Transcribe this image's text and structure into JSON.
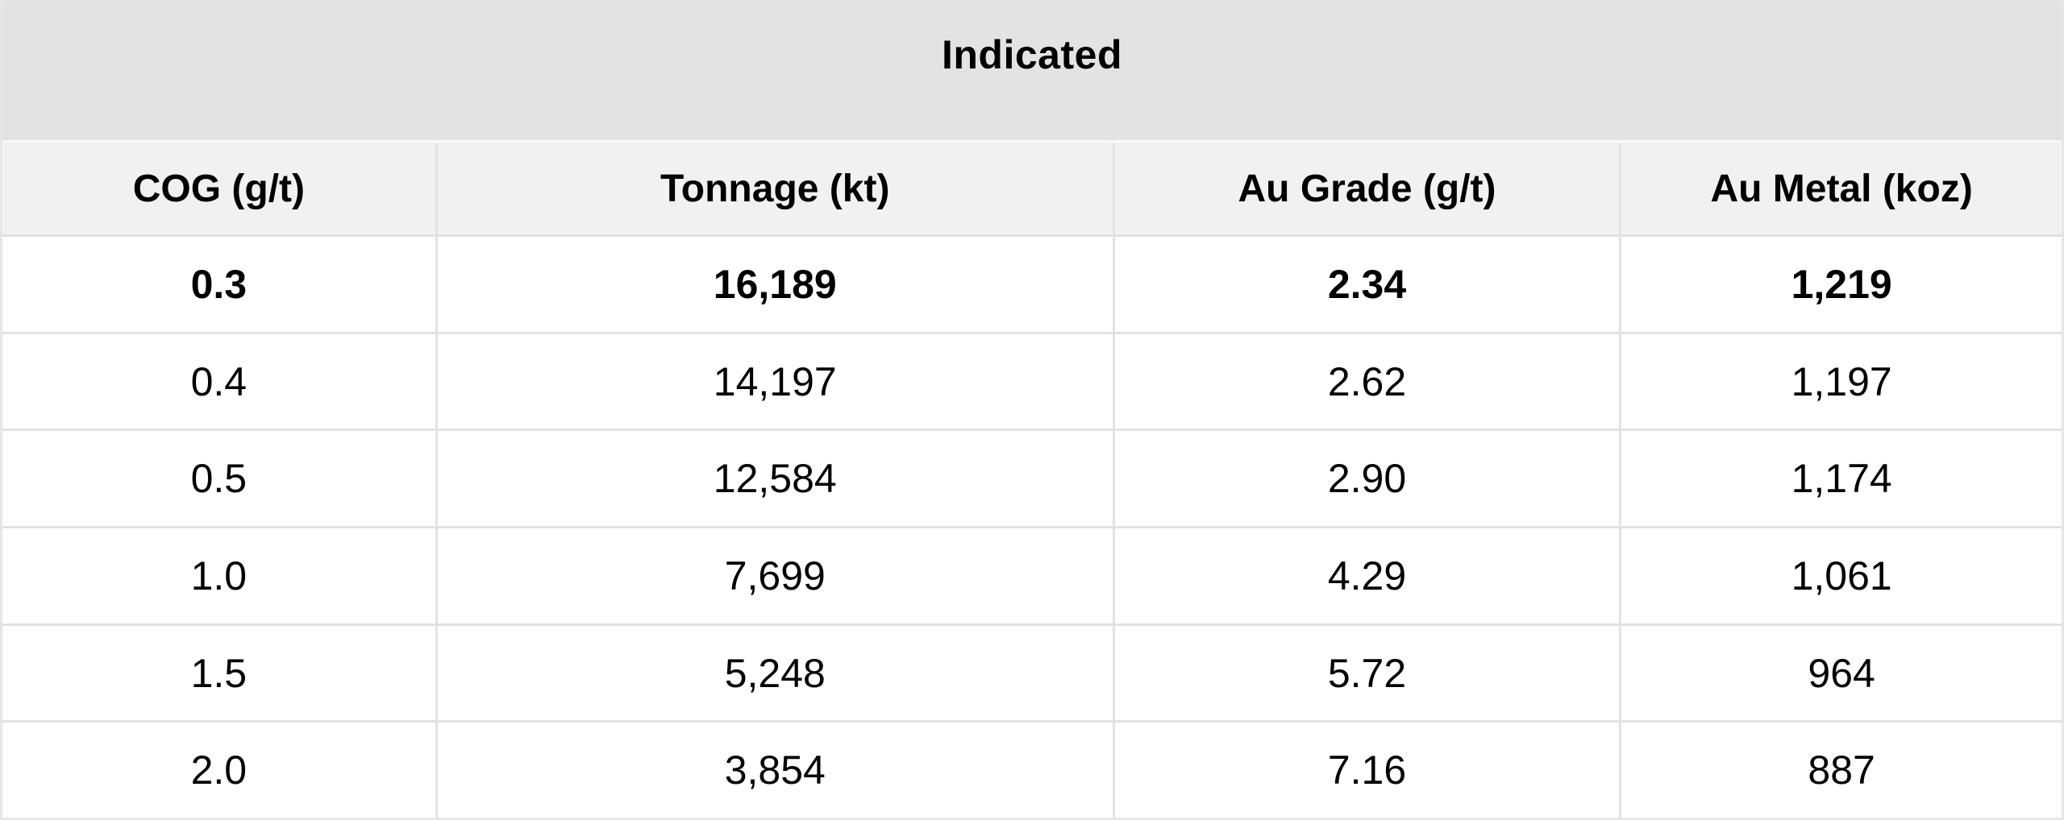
{
  "table": {
    "group_header": "Indicated",
    "columns": [
      "COG (g/t)",
      "Tonnage (kt)",
      "Au Grade (g/t)",
      "Au Metal (koz)"
    ],
    "rows": [
      {
        "cog": "0.3",
        "tonnage": "16,189",
        "grade": "2.34",
        "metal": "1,219"
      },
      {
        "cog": "0.4",
        "tonnage": "14,197",
        "grade": "2.62",
        "metal": "1,197"
      },
      {
        "cog": "0.5",
        "tonnage": "12,584",
        "grade": "2.90",
        "metal": "1,174"
      },
      {
        "cog": "1.0",
        "tonnage": "7,699",
        "grade": "4.29",
        "metal": "1,061"
      },
      {
        "cog": "1.5",
        "tonnage": "5,248",
        "grade": "5.72",
        "metal": "964"
      },
      {
        "cog": "2.0",
        "tonnage": "3,854",
        "grade": "7.16",
        "metal": "887"
      }
    ]
  },
  "chart_data": {
    "type": "table",
    "title": "Indicated",
    "columns": [
      "COG (g/t)",
      "Tonnage (kt)",
      "Au Grade (g/t)",
      "Au Metal (koz)"
    ],
    "rows": [
      [
        0.3,
        16189,
        2.34,
        1219
      ],
      [
        0.4,
        14197,
        2.62,
        1197
      ],
      [
        0.5,
        12584,
        2.9,
        1174
      ],
      [
        1.0,
        7699,
        4.29,
        1061
      ],
      [
        1.5,
        5248,
        5.72,
        964
      ],
      [
        2.0,
        3854,
        7.16,
        887
      ]
    ]
  },
  "colors": {
    "title_band_bg": "#e3e3e3",
    "header_row_bg": "#f1f1f1",
    "data_row_bg": "#ffffff",
    "border": "#e1e1e1",
    "text": "#000000"
  }
}
